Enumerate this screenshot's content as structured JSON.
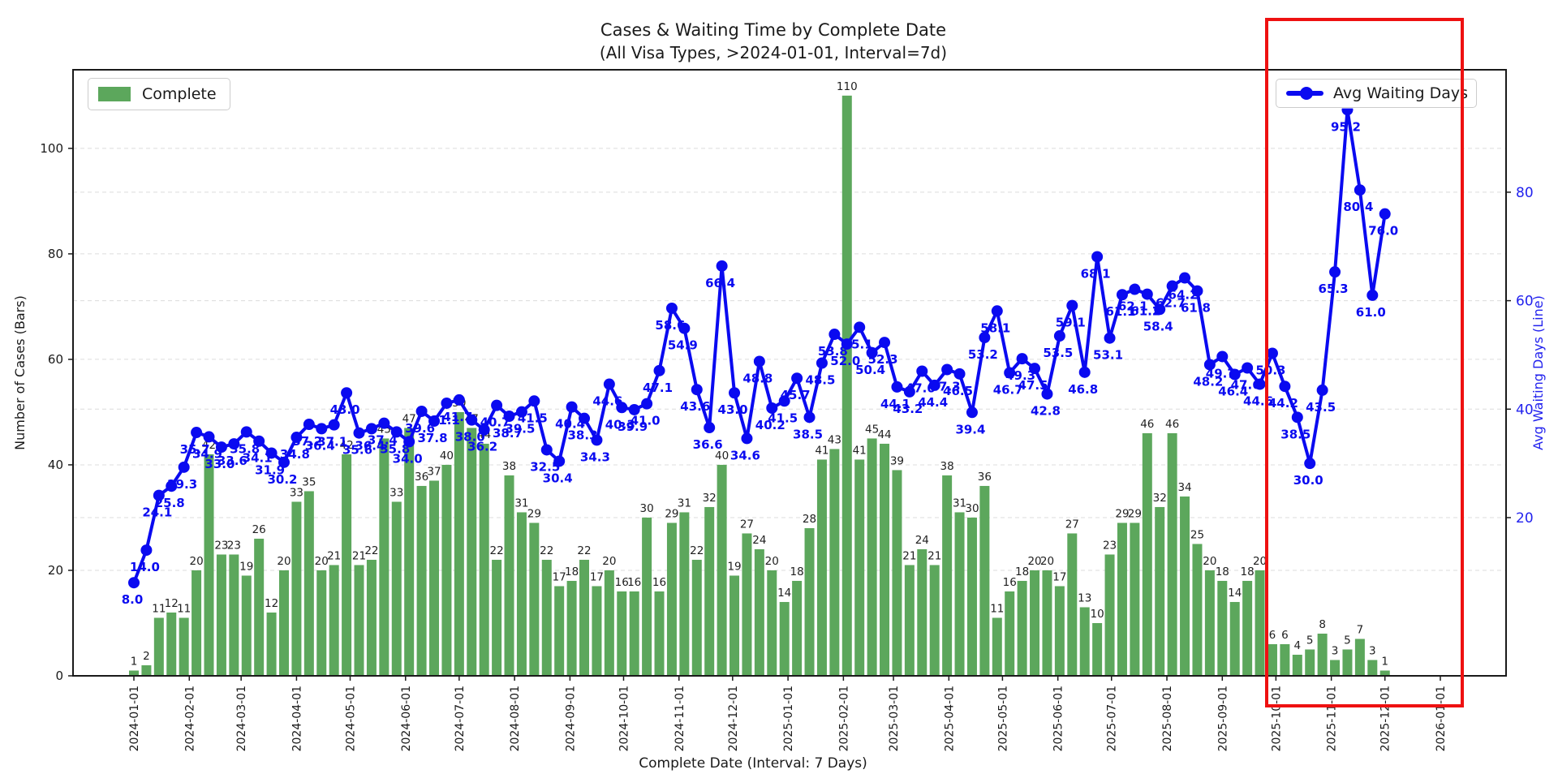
{
  "chart": {
    "title_line1": "Cases & Waiting Time by Complete Date",
    "title_line2": "(All Visa Types, >2024-01-01, Interval=7d)",
    "xlabel": "Complete Date (Interval: 7 Days)",
    "ylabel_left": "Number of Cases (Bars)",
    "ylabel_right": "Avg Waiting Days (Line)",
    "legend_bar_label": "Complete",
    "legend_line_label": "Avg Waiting Days",
    "colors": {
      "bar": "#5ca75c",
      "line": "#0a0af0",
      "bar_label": "#1f1f1f",
      "line_label": "#0a0af0",
      "right_axis_text": "#2222ee",
      "grid": "#dcdcdc",
      "spine": "#1a1a1a",
      "highlight_box": "#ee1111"
    }
  },
  "chart_data": {
    "type": "bar",
    "title": "Cases & Waiting Time by Complete Date (All Visa Types, >2024-01-01, Interval=7d)",
    "xlabel": "Complete Date (Interval: 7 Days)",
    "ylabel": "Number of Cases (Bars)",
    "ylabel_secondary": "Avg Waiting Days (Line)",
    "x_interval_days": 7,
    "x_tick_labels": [
      "2024-01-01",
      "2024-02-01",
      "2024-03-01",
      "2024-04-01",
      "2024-05-01",
      "2024-06-01",
      "2024-07-01",
      "2024-08-01",
      "2024-09-01",
      "2024-10-01",
      "2024-11-01",
      "2024-12-01",
      "2025-01-01",
      "2025-02-01",
      "2025-03-01",
      "2025-04-01",
      "2025-05-01",
      "2025-06-01",
      "2025-07-01",
      "2025-08-01",
      "2025-09-01",
      "2025-10-01",
      "2025-11-01",
      "2025-12-01",
      "2026-01-01"
    ],
    "left_ticks": [
      0,
      20,
      40,
      60,
      80,
      100
    ],
    "right_ticks": [
      20,
      40,
      60,
      80
    ],
    "ylim_left": [
      0,
      114.9
    ],
    "ylim_right": [
      -9.2,
      102.6
    ],
    "grid": "dashed horizontal",
    "legend_positions": {
      "bars": "upper left",
      "line": "upper right"
    },
    "dates": [
      "2024-01-01",
      "2024-01-08",
      "2024-01-15",
      "2024-01-22",
      "2024-01-29",
      "2024-02-05",
      "2024-02-12",
      "2024-02-19",
      "2024-02-26",
      "2024-03-04",
      "2024-03-11",
      "2024-03-18",
      "2024-03-25",
      "2024-04-01",
      "2024-04-08",
      "2024-04-15",
      "2024-04-22",
      "2024-04-29",
      "2024-05-06",
      "2024-05-13",
      "2024-05-20",
      "2024-05-27",
      "2024-06-03",
      "2024-06-10",
      "2024-06-17",
      "2024-06-24",
      "2024-07-01",
      "2024-07-08",
      "2024-07-15",
      "2024-07-22",
      "2024-07-29",
      "2024-08-05",
      "2024-08-12",
      "2024-08-19",
      "2024-08-26",
      "2024-09-02",
      "2024-09-09",
      "2024-09-16",
      "2024-09-23",
      "2024-09-30",
      "2024-10-07",
      "2024-10-14",
      "2024-10-21",
      "2024-10-28",
      "2024-11-04",
      "2024-11-11",
      "2024-11-18",
      "2024-11-25",
      "2024-12-02",
      "2024-12-09",
      "2024-12-16",
      "2024-12-23",
      "2024-12-30",
      "2025-01-06",
      "2025-01-13",
      "2025-01-20",
      "2025-01-27",
      "2025-02-03",
      "2025-02-10",
      "2025-02-17",
      "2025-02-24",
      "2025-03-03",
      "2025-03-10",
      "2025-03-17",
      "2025-03-24",
      "2025-03-31",
      "2025-04-07",
      "2025-04-14",
      "2025-04-21",
      "2025-04-28",
      "2025-05-05",
      "2025-05-12",
      "2025-05-19",
      "2025-05-26",
      "2025-06-02",
      "2025-06-09",
      "2025-06-16",
      "2025-06-23",
      "2025-06-30",
      "2025-07-07",
      "2025-07-14",
      "2025-07-21",
      "2025-07-28",
      "2025-08-04",
      "2025-08-11",
      "2025-08-18",
      "2025-08-25",
      "2025-09-01",
      "2025-09-08",
      "2025-09-15",
      "2025-09-22",
      "2025-09-29",
      "2025-10-06",
      "2025-10-13",
      "2025-10-20",
      "2025-10-27",
      "2025-11-03",
      "2025-11-10",
      "2025-11-17",
      "2025-11-24",
      "2025-12-01"
    ],
    "series": [
      {
        "name": "Complete",
        "type": "bar",
        "axis": "left",
        "values": [
          1,
          2,
          11,
          12,
          11,
          20,
          42,
          23,
          23,
          19,
          26,
          12,
          20,
          33,
          35,
          20,
          21,
          42,
          21,
          22,
          45,
          33,
          47,
          36,
          37,
          40,
          50,
          47,
          44,
          22,
          38,
          31,
          29,
          22,
          17,
          18,
          22,
          17,
          20,
          16,
          16,
          30,
          16,
          29,
          31,
          22,
          32,
          40,
          19,
          27,
          24,
          20,
          14,
          18,
          28,
          41,
          43,
          110,
          41,
          45,
          44,
          39,
          21,
          24,
          21,
          38,
          31,
          30,
          36,
          11,
          16,
          18,
          20,
          20,
          17,
          27,
          13,
          10,
          23,
          29,
          29,
          46,
          32,
          46,
          34,
          25,
          20,
          18,
          14,
          18,
          20,
          6,
          6,
          4,
          5,
          8,
          3,
          5,
          7,
          3,
          1
        ]
      },
      {
        "name": "Avg Waiting Days",
        "type": "line",
        "axis": "right",
        "values": [
          8.0,
          14.0,
          24.1,
          25.8,
          29.3,
          35.7,
          34.9,
          33.0,
          33.6,
          35.8,
          34.1,
          31.9,
          30.2,
          34.8,
          37.2,
          36.4,
          37.1,
          43.0,
          35.6,
          36.4,
          37.4,
          35.8,
          34.0,
          39.6,
          37.8,
          41.1,
          41.7,
          38.0,
          36.2,
          40.7,
          38.7,
          39.5,
          41.5,
          32.5,
          30.4,
          40.4,
          38.3,
          34.3,
          44.6,
          40.3,
          39.9,
          41.0,
          47.1,
          58.6,
          54.9,
          43.6,
          36.6,
          66.4,
          43.0,
          34.6,
          48.8,
          40.2,
          41.5,
          45.7,
          38.5,
          48.5,
          53.8,
          52.0,
          55.1,
          50.4,
          52.3,
          44.1,
          43.2,
          47.0,
          44.4,
          47.3,
          46.5,
          39.4,
          53.2,
          58.1,
          46.7,
          49.3,
          47.5,
          42.8,
          53.5,
          59.1,
          46.8,
          68.1,
          53.1,
          61.1,
          62.1,
          61.2,
          58.4,
          62.7,
          64.2,
          61.8,
          48.2,
          49.7,
          46.4,
          47.6,
          44.6,
          50.3,
          44.2,
          38.5,
          30.0,
          43.5,
          65.3,
          95.2,
          80.4,
          61.0,
          76.0
        ]
      }
    ],
    "annotations": [
      {
        "shape": "rectangle",
        "color": "red",
        "from_date": "2025-09-25",
        "to_date": "2026-01-14"
      }
    ]
  }
}
